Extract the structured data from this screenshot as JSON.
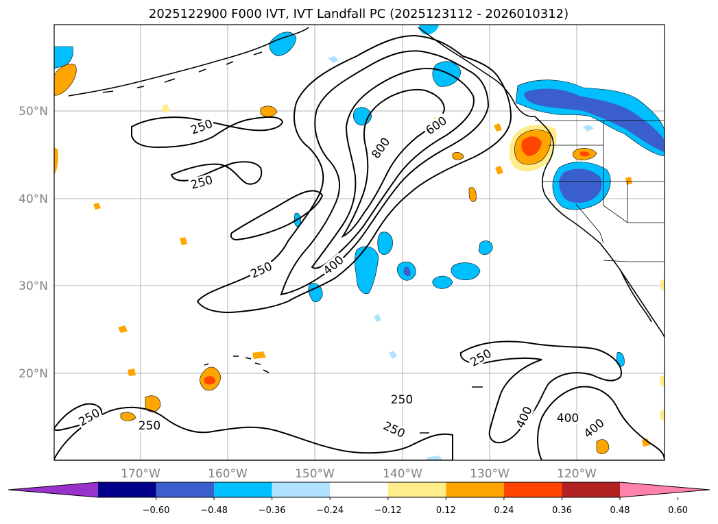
{
  "title": "2025122900 F000 IVT, IVT Landfall PC (2025123112 - 2026010312)",
  "latitude_labels": [
    "50°N",
    "40°N",
    "30°N",
    "20°N"
  ],
  "longitude_labels": [
    "170°W",
    "160°W",
    "150°W",
    "140°W",
    "130°W",
    "120°W"
  ],
  "contour_labels": [
    "250",
    "250",
    "250",
    "400",
    "800",
    "600",
    "250",
    "250",
    "250",
    "250",
    "250",
    "400",
    "400"
  ],
  "colorbar": {
    "colors": [
      "#9932CC",
      "#00008B",
      "#3A5FCD",
      "#00BFFF",
      "#B0E2FF",
      "#FFFFFF",
      "#FFEC8B",
      "#FFA500",
      "#FF4500",
      "#B22222",
      "#FF82AB"
    ],
    "tick_labels": [
      "−0.60",
      "−0.48",
      "−0.36",
      "−0.24",
      "−0.12",
      "0.12",
      "0.24",
      "0.36",
      "0.48",
      "0.60"
    ]
  },
  "colors": {
    "gridline": "#b0b0b0",
    "tick_label": "#808080"
  }
}
